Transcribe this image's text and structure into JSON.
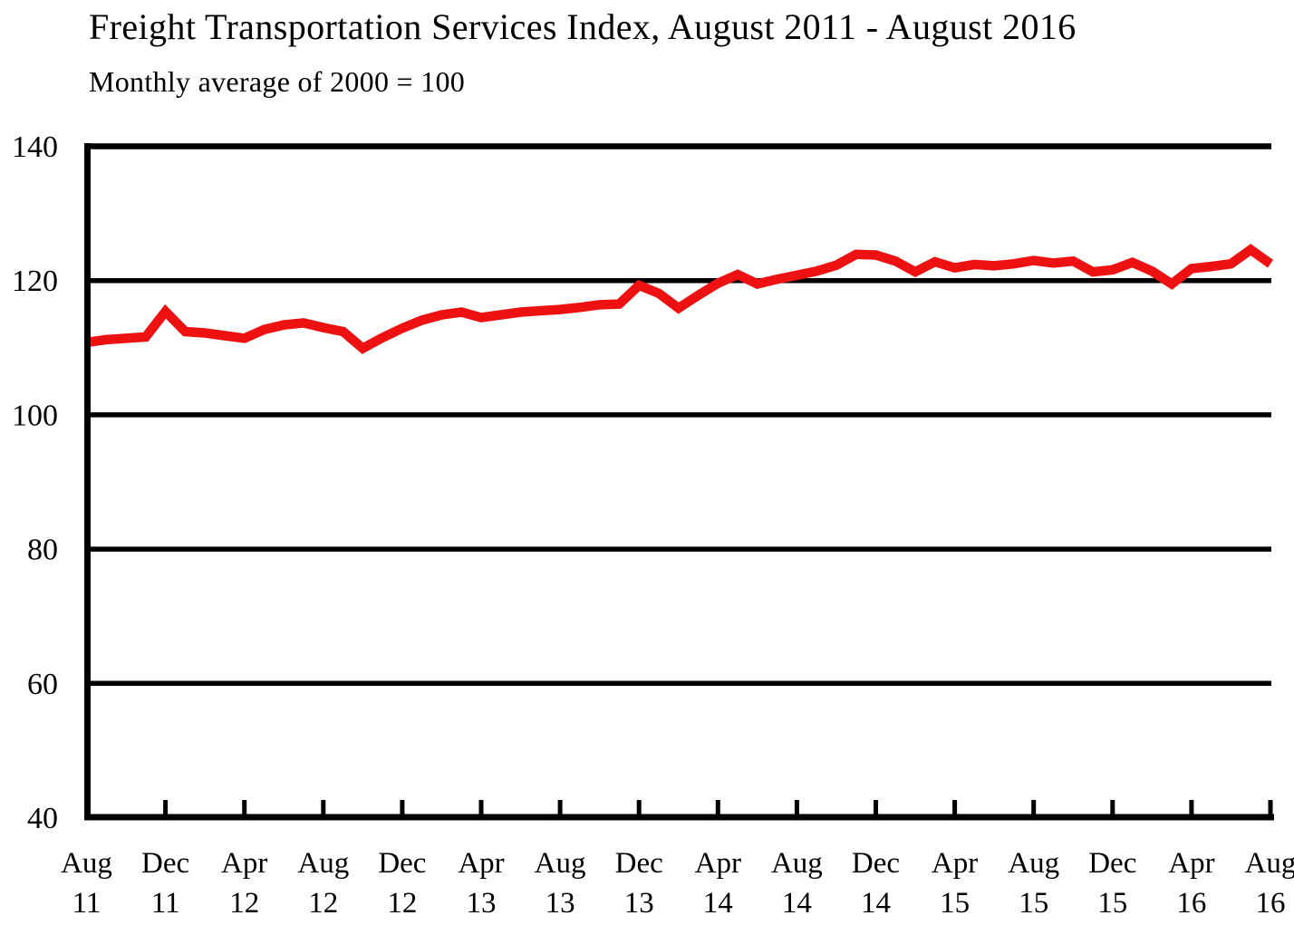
{
  "title": "Freight Transportation Services Index, August 2011 - August 2016",
  "subtitle": "Monthly average of 2000 = 100",
  "colors": {
    "line": "#ee1111",
    "axis": "#000000",
    "background": "#ffffff"
  },
  "chart_data": {
    "type": "line",
    "title": "Freight Transportation Services Index, August 2011 - August 2016",
    "subtitle": "Monthly average of 2000 = 100",
    "series_name": "Freight Transportation Services Index (monthly average of 2000 = 100)",
    "ylim": [
      40,
      140
    ],
    "yticks": [
      40,
      60,
      80,
      100,
      120,
      140
    ],
    "grid": "horizontal",
    "legend": "none",
    "x_tick_labels": [
      "Aug 11",
      "Dec 11",
      "Apr 12",
      "Aug 12",
      "Dec 12",
      "Apr 13",
      "Aug 13",
      "Dec 13",
      "Apr 14",
      "Aug 14",
      "Dec 14",
      "Apr 15",
      "Aug 15",
      "Dec 15",
      "Apr 16",
      "Aug 16"
    ],
    "x_tick_month_indices": [
      0,
      4,
      8,
      12,
      16,
      20,
      24,
      28,
      32,
      36,
      40,
      44,
      48,
      52,
      56,
      60
    ],
    "months": [
      "Aug 2011",
      "Sep 2011",
      "Oct 2011",
      "Nov 2011",
      "Dec 2011",
      "Jan 2012",
      "Feb 2012",
      "Mar 2012",
      "Apr 2012",
      "May 2012",
      "Jun 2012",
      "Jul 2012",
      "Aug 2012",
      "Sep 2012",
      "Oct 2012",
      "Nov 2012",
      "Dec 2012",
      "Jan 2013",
      "Feb 2013",
      "Mar 2013",
      "Apr 2013",
      "May 2013",
      "Jun 2013",
      "Jul 2013",
      "Aug 2013",
      "Sep 2013",
      "Oct 2013",
      "Nov 2013",
      "Dec 2013",
      "Jan 2014",
      "Feb 2014",
      "Mar 2014",
      "Apr 2014",
      "May 2014",
      "Jun 2014",
      "Jul 2014",
      "Aug 2014",
      "Sep 2014",
      "Oct 2014",
      "Nov 2014",
      "Dec 2014",
      "Jan 2015",
      "Feb 2015",
      "Mar 2015",
      "Apr 2015",
      "May 2015",
      "Jun 2015",
      "Jul 2015",
      "Aug 2015",
      "Sep 2015",
      "Oct 2015",
      "Nov 2015",
      "Dec 2015",
      "Jan 2016",
      "Feb 2016",
      "Mar 2016",
      "Apr 2016",
      "May 2016",
      "Jun 2016",
      "Jul 2016",
      "Aug 2016"
    ],
    "values": [
      110.8,
      111.2,
      111.4,
      111.6,
      115.4,
      112.4,
      112.2,
      111.8,
      111.4,
      112.7,
      113.4,
      113.7,
      113.0,
      112.4,
      109.9,
      111.5,
      112.9,
      114.1,
      114.9,
      115.3,
      114.5,
      114.9,
      115.3,
      115.5,
      115.7,
      116.0,
      116.4,
      116.5,
      119.3,
      118.1,
      115.9,
      117.8,
      119.6,
      120.9,
      119.5,
      120.2,
      120.8,
      121.4,
      122.3,
      123.9,
      123.8,
      122.9,
      121.3,
      122.8,
      121.9,
      122.4,
      122.2,
      122.5,
      123.0,
      122.6,
      122.9,
      121.3,
      121.6,
      122.7,
      121.4,
      119.5,
      121.8,
      122.1,
      122.5,
      124.6,
      122.5
    ]
  }
}
